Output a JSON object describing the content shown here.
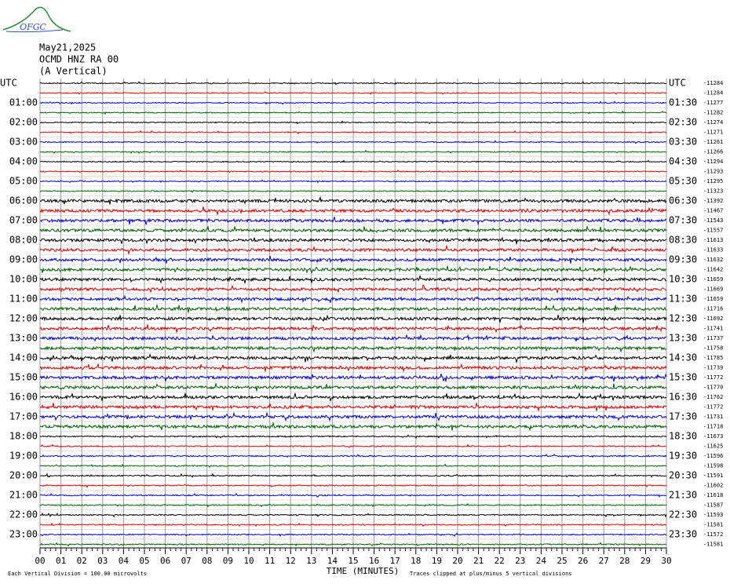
{
  "header": {
    "logo": "OFGC",
    "date": "May21,2025",
    "station": "OCMD HNZ RA 00",
    "component": "(A Vertical)"
  },
  "left_labels": [
    "UTC",
    "01:00",
    "02:00",
    "03:00",
    "04:00",
    "05:00",
    "06:00",
    "07:00",
    "08:00",
    "09:00",
    "10:00",
    "11:00",
    "12:00",
    "13:00",
    "14:00",
    "15:00",
    "16:00",
    "17:00",
    "18:00",
    "19:00",
    "20:00",
    "21:00",
    "22:00",
    "23:00"
  ],
  "right_labels": [
    "UTC",
    "01:30",
    "02:30",
    "03:30",
    "04:30",
    "05:30",
    "06:30",
    "07:30",
    "08:30",
    "09:30",
    "10:30",
    "11:30",
    "12:30",
    "13:30",
    "14:30",
    "15:30",
    "16:30",
    "17:30",
    "18:30",
    "19:30",
    "20:30",
    "21:30",
    "22:30",
    "23:30"
  ],
  "trace_colors": [
    "#000000",
    "#e00000",
    "#0000e0",
    "#006000"
  ],
  "trace_means": [
    -11284,
    -11284,
    -11277,
    -11282,
    -11274,
    -11271,
    -11261,
    -11266,
    -11294,
    -11293,
    -11295,
    -11323,
    -11392,
    -11467,
    -11543,
    -11557,
    -11613,
    -11633,
    -11632,
    -11642,
    -11659,
    -11669,
    -11659,
    -11716,
    -11692,
    -11741,
    -11737,
    -11758,
    -11785,
    -11739,
    -11772,
    -11770,
    -11762,
    -11772,
    -11731,
    -11718,
    -11673,
    -11625,
    -11596,
    -11598,
    -11591,
    -11602,
    -11618,
    -11587,
    -11593,
    -11581,
    -11572,
    -11581
  ],
  "x_ticks": [
    "00",
    "01",
    "02",
    "03",
    "04",
    "05",
    "06",
    "07",
    "08",
    "09",
    "10",
    "11",
    "12",
    "13",
    "14",
    "15",
    "16",
    "17",
    "18",
    "19",
    "20",
    "21",
    "22",
    "23",
    "24",
    "25",
    "26",
    "27",
    "28",
    "29",
    "30"
  ],
  "footer": {
    "scale_note": "Each Vertical Division =  100.00 microvolts",
    "x_axis_label": "TIME (MINUTES)",
    "clip_note": "Traces clipped at plus/minus 5 vertical divisions"
  }
}
